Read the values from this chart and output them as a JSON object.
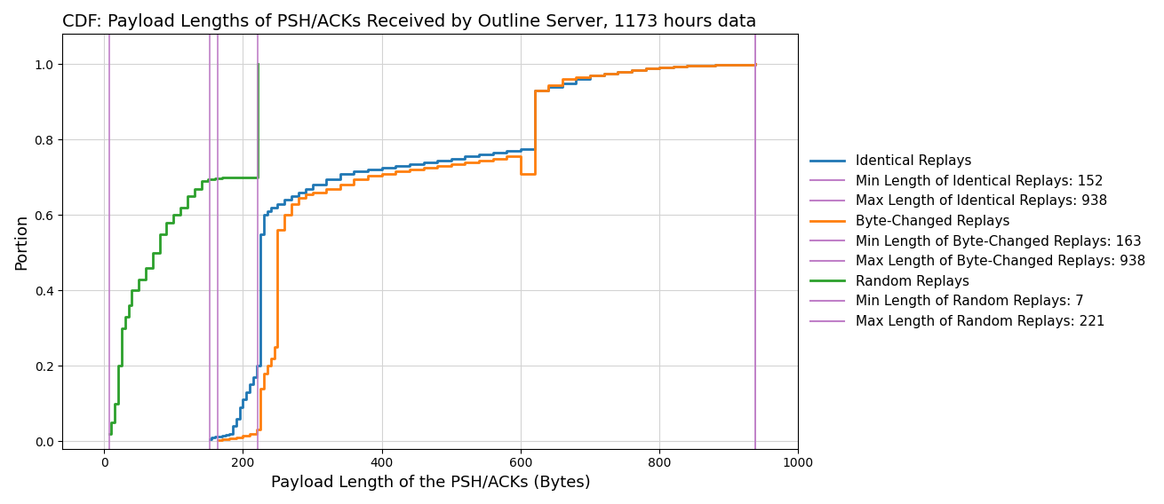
{
  "title": "CDF: Payload Lengths of PSH/ACKs Received by Outline Server, 1173 hours data",
  "xlabel": "Payload Length of the PSH/ACKs (Bytes)",
  "ylabel": "Portion",
  "title_fontsize": 14,
  "label_fontsize": 13,
  "vlines": [
    {
      "x": 152,
      "color": "#c080c8",
      "label": "Min Length of Identical Replays: 152"
    },
    {
      "x": 938,
      "color": "#c080c8",
      "label": "Max Length of Identical Replays: 938"
    },
    {
      "x": 163,
      "color": "#c080c8",
      "label": "Min Length of Byte-Changed Replays: 163"
    },
    {
      "x": 938,
      "color": "#c080c8",
      "label": "Max Length of Byte-Changed Replays: 938"
    },
    {
      "x": 7,
      "color": "#c080c8",
      "label": "Min Length of Random Replays: 7"
    },
    {
      "x": 221,
      "color": "#c080c8",
      "label": "Max Length of Random Replays: 221"
    }
  ],
  "identical_replays": {
    "label": "Identical Replays",
    "color": "#1f77b4",
    "x": [
      152,
      155,
      160,
      165,
      170,
      175,
      180,
      185,
      190,
      195,
      200,
      205,
      210,
      215,
      220,
      225,
      230,
      235,
      240,
      250,
      260,
      270,
      280,
      290,
      300,
      320,
      340,
      360,
      380,
      400,
      420,
      440,
      460,
      480,
      500,
      520,
      540,
      560,
      580,
      600,
      620,
      640,
      660,
      680,
      700,
      720,
      740,
      760,
      780,
      800,
      820,
      840,
      860,
      880,
      900,
      920,
      938
    ],
    "y": [
      0.005,
      0.01,
      0.012,
      0.013,
      0.014,
      0.016,
      0.02,
      0.04,
      0.06,
      0.09,
      0.11,
      0.13,
      0.15,
      0.17,
      0.2,
      0.55,
      0.6,
      0.61,
      0.62,
      0.63,
      0.64,
      0.65,
      0.66,
      0.67,
      0.68,
      0.695,
      0.71,
      0.715,
      0.72,
      0.725,
      0.73,
      0.735,
      0.74,
      0.745,
      0.75,
      0.755,
      0.76,
      0.765,
      0.77,
      0.775,
      0.93,
      0.94,
      0.95,
      0.96,
      0.97,
      0.975,
      0.98,
      0.985,
      0.988,
      0.991,
      0.993,
      0.995,
      0.997,
      0.998,
      0.999,
      0.9995,
      1.0
    ]
  },
  "byte_changed_replays": {
    "label": "Byte-Changed Replays",
    "color": "#ff7f0e",
    "x": [
      163,
      170,
      180,
      190,
      200,
      210,
      220,
      225,
      230,
      235,
      240,
      245,
      250,
      260,
      270,
      280,
      290,
      300,
      320,
      340,
      360,
      380,
      400,
      420,
      440,
      460,
      480,
      500,
      520,
      540,
      560,
      580,
      600,
      620,
      640,
      660,
      680,
      700,
      720,
      740,
      760,
      780,
      800,
      820,
      840,
      860,
      880,
      900,
      920,
      938
    ],
    "y": [
      0.003,
      0.005,
      0.007,
      0.01,
      0.015,
      0.02,
      0.03,
      0.14,
      0.18,
      0.2,
      0.22,
      0.25,
      0.56,
      0.6,
      0.63,
      0.645,
      0.655,
      0.66,
      0.67,
      0.68,
      0.695,
      0.705,
      0.71,
      0.715,
      0.72,
      0.725,
      0.73,
      0.735,
      0.74,
      0.745,
      0.75,
      0.755,
      0.71,
      0.93,
      0.945,
      0.96,
      0.965,
      0.97,
      0.975,
      0.98,
      0.985,
      0.988,
      0.991,
      0.993,
      0.995,
      0.997,
      0.998,
      0.999,
      0.9995,
      1.0
    ]
  },
  "random_replays": {
    "label": "Random Replays",
    "color": "#2ca02c",
    "x": [
      7,
      10,
      15,
      20,
      25,
      30,
      35,
      40,
      50,
      60,
      70,
      80,
      90,
      100,
      110,
      120,
      130,
      140,
      150,
      160,
      170,
      180,
      190,
      200,
      210,
      220,
      221
    ],
    "y": [
      0.02,
      0.05,
      0.1,
      0.2,
      0.3,
      0.33,
      0.36,
      0.4,
      0.43,
      0.46,
      0.5,
      0.55,
      0.58,
      0.6,
      0.62,
      0.65,
      0.67,
      0.69,
      0.695,
      0.698,
      0.699,
      0.7,
      0.7,
      0.7,
      0.7,
      0.7,
      1.0
    ]
  },
  "xlim": [
    -60,
    1000
  ],
  "ylim": [
    -0.02,
    1.08
  ],
  "figsize": [
    13.1,
    5.68
  ],
  "dpi": 100,
  "bg_color": "#f0f0f0"
}
